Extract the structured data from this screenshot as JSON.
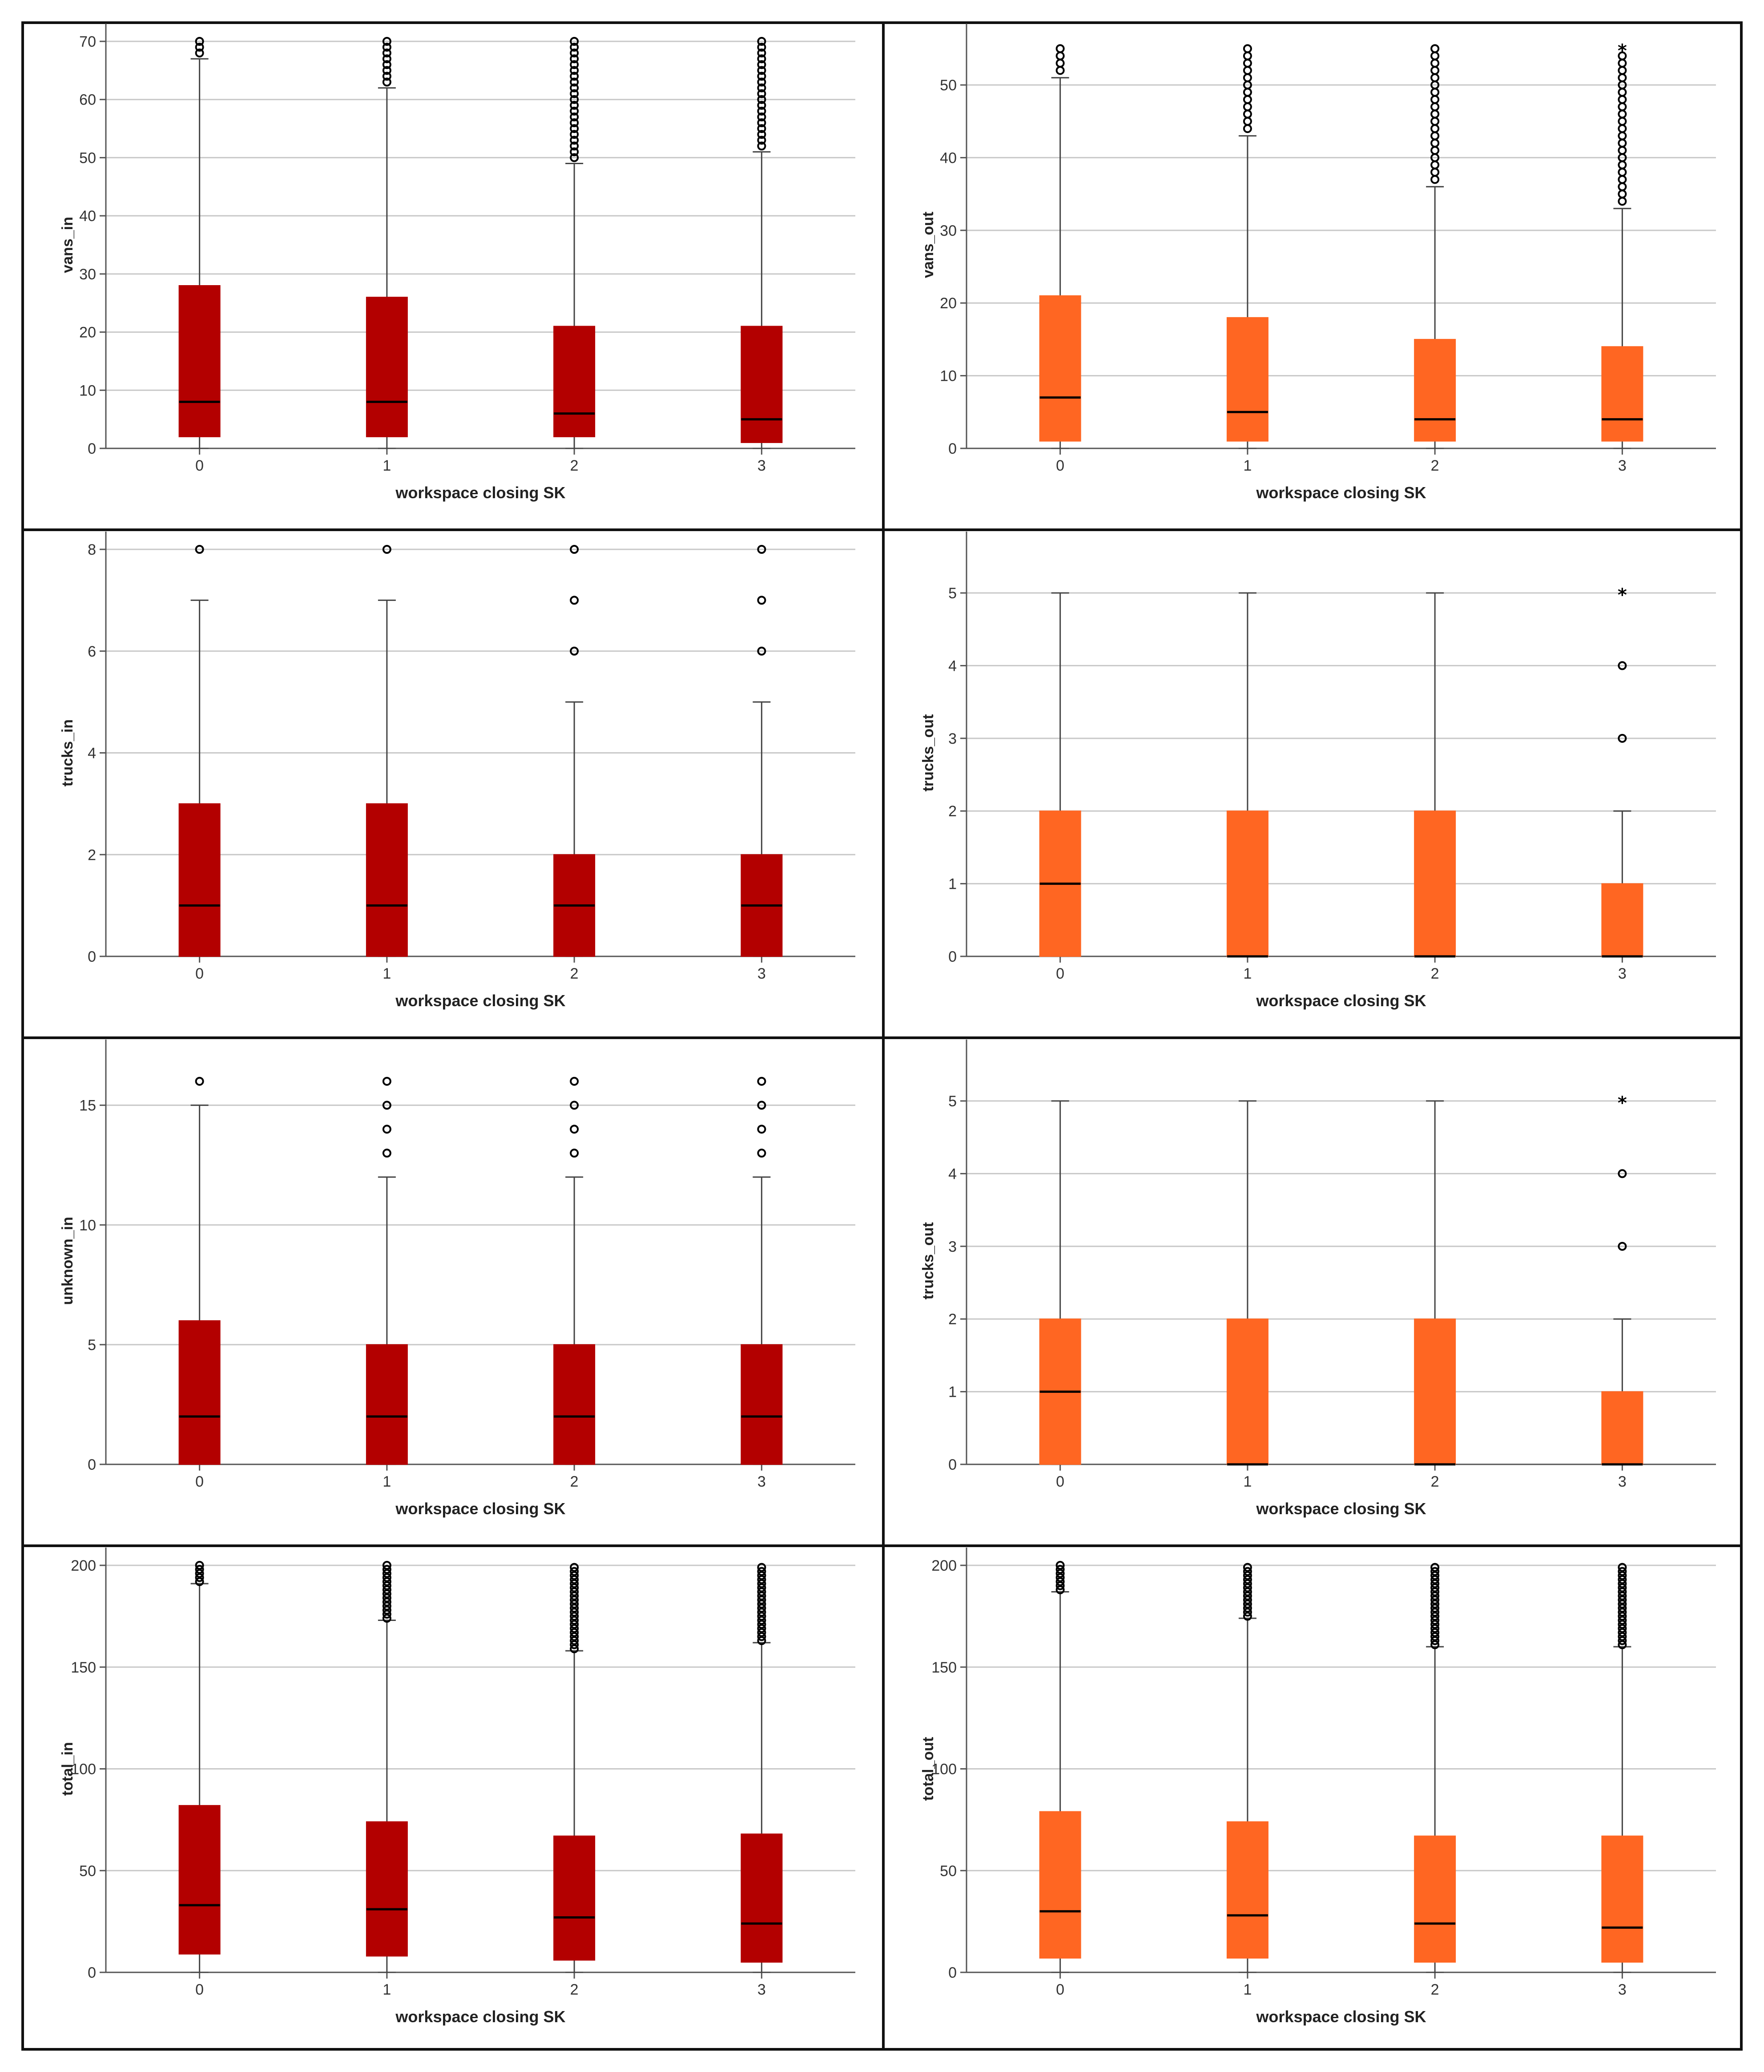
{
  "colors": {
    "in": "#b30000",
    "out": "#ff6622",
    "grid": "#c8c8c8",
    "axis": "#555555",
    "text": "#333333"
  },
  "chart_data": [
    {
      "type": "boxplot",
      "id": "vans_in",
      "color_key": "in",
      "ylabel": "vans_in",
      "xlabel": "workspace closing SK",
      "categories": [
        "0",
        "1",
        "2",
        "3"
      ],
      "ylim": [
        0,
        70
      ],
      "yticks": [
        0,
        10,
        20,
        30,
        40,
        50,
        60,
        70
      ],
      "boxes": [
        {
          "q1": 2,
          "median": 8,
          "q3": 28,
          "whisker_low": 0,
          "whisker_high": 67,
          "outliers": [
            68,
            69,
            70
          ],
          "extremes": []
        },
        {
          "q1": 2,
          "median": 8,
          "q3": 26,
          "whisker_low": 0,
          "whisker_high": 62,
          "outliers": [
            63,
            64,
            65,
            66,
            67,
            68,
            69,
            70
          ],
          "extremes": []
        },
        {
          "q1": 2,
          "median": 6,
          "q3": 21,
          "whisker_low": 0,
          "whisker_high": 49,
          "outliers": [
            50,
            51,
            52,
            53,
            54,
            55,
            56,
            57,
            58,
            59,
            60,
            61,
            62,
            63,
            64,
            65,
            66,
            67,
            68,
            69,
            70
          ],
          "extremes": []
        },
        {
          "q1": 1,
          "median": 5,
          "q3": 21,
          "whisker_low": 0,
          "whisker_high": 51,
          "outliers": [
            52,
            53,
            54,
            55,
            56,
            57,
            58,
            59,
            60,
            61,
            62,
            63,
            64,
            65,
            66,
            67,
            68,
            69,
            70
          ],
          "extremes": []
        }
      ]
    },
    {
      "type": "boxplot",
      "id": "vans_out",
      "color_key": "out",
      "ylabel": "vans_out",
      "xlabel": "workspace closing SK",
      "categories": [
        "0",
        "1",
        "2",
        "3"
      ],
      "ylim": [
        0,
        56
      ],
      "yticks": [
        0,
        10,
        20,
        30,
        40,
        50
      ],
      "boxes": [
        {
          "q1": 1,
          "median": 7,
          "q3": 21,
          "whisker_low": 0,
          "whisker_high": 51,
          "outliers": [
            52,
            53,
            54,
            55
          ],
          "extremes": []
        },
        {
          "q1": 1,
          "median": 5,
          "q3": 18,
          "whisker_low": 0,
          "whisker_high": 43,
          "outliers": [
            44,
            45,
            46,
            47,
            48,
            49,
            50,
            51,
            52,
            53,
            54,
            55
          ],
          "extremes": []
        },
        {
          "q1": 1,
          "median": 4,
          "q3": 15,
          "whisker_low": 0,
          "whisker_high": 36,
          "outliers": [
            37,
            38,
            39,
            40,
            41,
            42,
            43,
            44,
            45,
            46,
            47,
            48,
            49,
            50,
            51,
            52,
            53,
            54,
            55
          ],
          "extremes": []
        },
        {
          "q1": 1,
          "median": 4,
          "q3": 14,
          "whisker_low": 0,
          "whisker_high": 33,
          "outliers": [
            34,
            35,
            36,
            37,
            38,
            39,
            40,
            41,
            42,
            43,
            44,
            45,
            46,
            47,
            48,
            49,
            50,
            51,
            52,
            53,
            54
          ],
          "extremes": [
            55
          ]
        }
      ]
    },
    {
      "type": "boxplot",
      "id": "trucks_in",
      "color_key": "in",
      "ylabel": "trucks_in",
      "xlabel": "workspace closing SK",
      "categories": [
        "0",
        "1",
        "2",
        "3"
      ],
      "ylim": [
        0,
        8
      ],
      "yticks": [
        0,
        2,
        4,
        6,
        8
      ],
      "boxes": [
        {
          "q1": 0,
          "median": 1,
          "q3": 3,
          "whisker_low": 0,
          "whisker_high": 7,
          "outliers": [
            8
          ],
          "extremes": []
        },
        {
          "q1": 0,
          "median": 1,
          "q3": 3,
          "whisker_low": 0,
          "whisker_high": 7,
          "outliers": [
            8
          ],
          "extremes": []
        },
        {
          "q1": 0,
          "median": 1,
          "q3": 2,
          "whisker_low": 0,
          "whisker_high": 5,
          "outliers": [
            6,
            7,
            8
          ],
          "extremes": []
        },
        {
          "q1": 0,
          "median": 1,
          "q3": 2,
          "whisker_low": 0,
          "whisker_high": 5,
          "outliers": [
            6,
            7,
            8
          ],
          "extremes": []
        }
      ]
    },
    {
      "type": "boxplot",
      "id": "trucks_out_1",
      "color_key": "out",
      "ylabel": "trucks_out",
      "xlabel": "workspace closing SK",
      "categories": [
        "0",
        "1",
        "2",
        "3"
      ],
      "ylim": [
        0,
        5.6
      ],
      "yticks": [
        0,
        1,
        2,
        3,
        4,
        5
      ],
      "boxes": [
        {
          "q1": 0,
          "median": 1,
          "q3": 2,
          "whisker_low": 0,
          "whisker_high": 5,
          "outliers": [],
          "extremes": []
        },
        {
          "q1": 0,
          "median": 0,
          "q3": 2,
          "whisker_low": 0,
          "whisker_high": 5,
          "outliers": [],
          "extremes": []
        },
        {
          "q1": 0,
          "median": 0,
          "q3": 2,
          "whisker_low": 0,
          "whisker_high": 5,
          "outliers": [],
          "extremes": []
        },
        {
          "q1": 0,
          "median": 0,
          "q3": 1,
          "whisker_low": 0,
          "whisker_high": 2,
          "outliers": [
            3,
            4
          ],
          "extremes": [
            5
          ]
        }
      ]
    },
    {
      "type": "boxplot",
      "id": "unknown_in",
      "color_key": "in",
      "ylabel": "unknown_in",
      "xlabel": "workspace closing SK",
      "categories": [
        "0",
        "1",
        "2",
        "3"
      ],
      "ylim": [
        0,
        17
      ],
      "yticks": [
        0,
        5,
        10,
        15
      ],
      "boxes": [
        {
          "q1": 0,
          "median": 2,
          "q3": 6,
          "whisker_low": 0,
          "whisker_high": 15,
          "outliers": [
            16
          ],
          "extremes": []
        },
        {
          "q1": 0,
          "median": 2,
          "q3": 5,
          "whisker_low": 0,
          "whisker_high": 12,
          "outliers": [
            13,
            14,
            15,
            16
          ],
          "extremes": []
        },
        {
          "q1": 0,
          "median": 2,
          "q3": 5,
          "whisker_low": 0,
          "whisker_high": 12,
          "outliers": [
            13,
            14,
            15,
            16
          ],
          "extremes": []
        },
        {
          "q1": 0,
          "median": 2,
          "q3": 5,
          "whisker_low": 0,
          "whisker_high": 12,
          "outliers": [
            13,
            14,
            15,
            16
          ],
          "extremes": []
        }
      ]
    },
    {
      "type": "boxplot",
      "id": "trucks_out_2",
      "color_key": "out",
      "ylabel": "trucks_out",
      "xlabel": "workspace closing SK",
      "categories": [
        "0",
        "1",
        "2",
        "3"
      ],
      "ylim": [
        0,
        5.6
      ],
      "yticks": [
        0,
        1,
        2,
        3,
        4,
        5
      ],
      "boxes": [
        {
          "q1": 0,
          "median": 1,
          "q3": 2,
          "whisker_low": 0,
          "whisker_high": 5,
          "outliers": [],
          "extremes": []
        },
        {
          "q1": 0,
          "median": 0,
          "q3": 2,
          "whisker_low": 0,
          "whisker_high": 5,
          "outliers": [],
          "extremes": []
        },
        {
          "q1": 0,
          "median": 0,
          "q3": 2,
          "whisker_low": 0,
          "whisker_high": 5,
          "outliers": [],
          "extremes": []
        },
        {
          "q1": 0,
          "median": 0,
          "q3": 1,
          "whisker_low": 0,
          "whisker_high": 2,
          "outliers": [
            3,
            4
          ],
          "extremes": [
            5
          ]
        }
      ]
    },
    {
      "type": "boxplot",
      "id": "total_in",
      "color_key": "in",
      "ylabel": "total_in",
      "xlabel": "workspace closing SK",
      "categories": [
        "0",
        "1",
        "2",
        "3"
      ],
      "ylim": [
        0,
        200
      ],
      "yticks": [
        0,
        50,
        100,
        150,
        200
      ],
      "boxes": [
        {
          "q1": 9,
          "median": 33,
          "q3": 82,
          "whisker_low": 0,
          "whisker_high": 191,
          "outliers": [
            192,
            194,
            196,
            198,
            200
          ],
          "extremes": []
        },
        {
          "q1": 8,
          "median": 31,
          "q3": 74,
          "whisker_low": 0,
          "whisker_high": 173,
          "outliers": [
            174,
            176,
            178,
            180,
            182,
            184,
            186,
            188,
            190,
            192,
            194,
            196,
            198,
            200
          ],
          "extremes": []
        },
        {
          "q1": 6,
          "median": 27,
          "q3": 67,
          "whisker_low": 0,
          "whisker_high": 158,
          "outliers": [
            159,
            161,
            163,
            165,
            167,
            169,
            171,
            173,
            175,
            177,
            179,
            181,
            183,
            185,
            187,
            189,
            191,
            193,
            195,
            197,
            199
          ],
          "extremes": []
        },
        {
          "q1": 5,
          "median": 24,
          "q3": 68,
          "whisker_low": 0,
          "whisker_high": 162,
          "outliers": [
            163,
            165,
            167,
            169,
            171,
            173,
            175,
            177,
            179,
            181,
            183,
            185,
            187,
            189,
            191,
            193,
            195,
            197,
            199
          ],
          "extremes": []
        }
      ]
    },
    {
      "type": "boxplot",
      "id": "total_out",
      "color_key": "out",
      "ylabel": "total_out",
      "xlabel": "workspace closing SK",
      "categories": [
        "0",
        "1",
        "2",
        "3"
      ],
      "ylim": [
        0,
        200
      ],
      "yticks": [
        0,
        50,
        100,
        150,
        200
      ],
      "boxes": [
        {
          "q1": 7,
          "median": 30,
          "q3": 79,
          "whisker_low": 0,
          "whisker_high": 187,
          "outliers": [
            188,
            190,
            192,
            194,
            196,
            198,
            200
          ],
          "extremes": []
        },
        {
          "q1": 7,
          "median": 28,
          "q3": 74,
          "whisker_low": 0,
          "whisker_high": 174,
          "outliers": [
            175,
            177,
            179,
            181,
            183,
            185,
            187,
            189,
            191,
            193,
            195,
            197,
            199
          ],
          "extremes": []
        },
        {
          "q1": 5,
          "median": 24,
          "q3": 67,
          "whisker_low": 0,
          "whisker_high": 160,
          "outliers": [
            161,
            163,
            165,
            167,
            169,
            171,
            173,
            175,
            177,
            179,
            181,
            183,
            185,
            187,
            189,
            191,
            193,
            195,
            197,
            199
          ],
          "extremes": []
        },
        {
          "q1": 5,
          "median": 22,
          "q3": 67,
          "whisker_low": 0,
          "whisker_high": 160,
          "outliers": [
            161,
            163,
            165,
            167,
            169,
            171,
            173,
            175,
            177,
            179,
            181,
            183,
            185,
            187,
            189,
            191,
            193,
            195,
            197,
            199
          ],
          "extremes": []
        }
      ]
    }
  ]
}
